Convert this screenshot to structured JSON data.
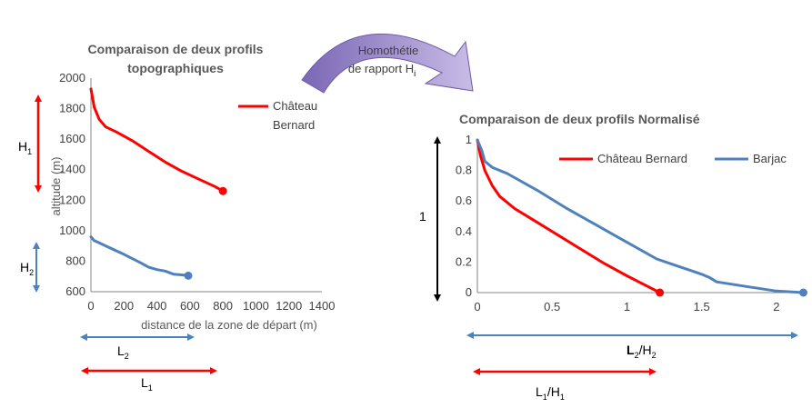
{
  "chart_data": [
    {
      "type": "line",
      "title_lines": [
        "Comparaison de deux profils",
        "topographiques"
      ],
      "xlabel": "distance de la zone de départ (m)",
      "ylabel": "altitude (m)",
      "xlim": [
        0,
        1400
      ],
      "ylim": [
        600,
        2000
      ],
      "xticks": [
        "0",
        "200",
        "400",
        "600",
        "800",
        "1000",
        "1200",
        "1400"
      ],
      "yticks": [
        "600",
        "800",
        "1000",
        "1200",
        "1400",
        "1600",
        "1800",
        "2000"
      ],
      "legend": [
        "Château",
        "Bernard"
      ],
      "series": [
        {
          "name": "Château Bernard",
          "color": "#ff0000",
          "x": [
            0,
            20,
            50,
            90,
            150,
            250,
            350,
            450,
            550,
            650,
            750,
            800
          ],
          "y": [
            1930,
            1810,
            1730,
            1680,
            1650,
            1590,
            1520,
            1450,
            1390,
            1340,
            1290,
            1260
          ]
        },
        {
          "name": "Barjac",
          "color": "#4f81bd",
          "x": [
            0,
            20,
            50,
            100,
            200,
            300,
            350,
            400,
            450,
            500,
            550,
            590
          ],
          "y": [
            960,
            935,
            920,
            895,
            845,
            790,
            760,
            745,
            735,
            715,
            710,
            705
          ]
        }
      ],
      "annotations": {
        "height_top": {
          "main": "H",
          "sub": "1"
        },
        "height_bottom": {
          "main": "H",
          "sub": "2"
        },
        "length_top": {
          "main": "L",
          "sub": "2"
        },
        "length_bottom": {
          "main": "L",
          "sub": "1"
        }
      }
    },
    {
      "type": "line",
      "title": "Comparaison de deux profils Normalisé",
      "xlim": [
        0,
        2.25
      ],
      "ylim": [
        0,
        1
      ],
      "xticks": [
        "0",
        "0.5",
        "1",
        "1.5",
        "2"
      ],
      "yticks": [
        "0",
        "0.2",
        "0.4",
        "0.6",
        "0.8",
        "1"
      ],
      "series": [
        {
          "name": "Château Bernard",
          "color": "#ff0000",
          "x": [
            0,
            0.02,
            0.05,
            0.1,
            0.15,
            0.25,
            0.4,
            0.55,
            0.7,
            0.85,
            1.0,
            1.1,
            1.22
          ],
          "y": [
            1,
            0.9,
            0.8,
            0.7,
            0.63,
            0.55,
            0.46,
            0.37,
            0.28,
            0.19,
            0.11,
            0.06,
            0
          ]
        },
        {
          "name": "Barjac",
          "color": "#4f81bd",
          "x": [
            0,
            0.03,
            0.05,
            0.1,
            0.2,
            0.4,
            0.6,
            0.8,
            1.0,
            1.2,
            1.35,
            1.5,
            1.55,
            1.6,
            1.8,
            2.0,
            2.18
          ],
          "y": [
            1,
            0.93,
            0.86,
            0.82,
            0.78,
            0.67,
            0.55,
            0.44,
            0.33,
            0.22,
            0.17,
            0.12,
            0.1,
            0.07,
            0.04,
            0.01,
            0
          ]
        }
      ],
      "annotations": {
        "height": "1",
        "length_top": {
          "main": "L",
          "sub": "2",
          "sep": "/",
          "main2": "H",
          "sub2": "2"
        },
        "length_bottom": {
          "main": "L",
          "sub": "1",
          "sep": "/",
          "main2": "H",
          "sub2": "1"
        }
      }
    }
  ],
  "transition": {
    "line1": "Homothétie",
    "line2": "de rapport H",
    "sub": "i"
  },
  "colors": {
    "red": "#ff0000",
    "blue": "#4f81bd",
    "black": "#000000",
    "arrow_fill": "#9b87c9",
    "arrow_stroke": "#6f5aa8"
  }
}
